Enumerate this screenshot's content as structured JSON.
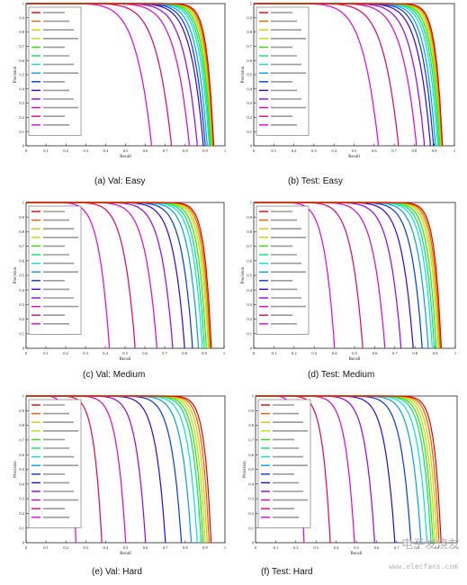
{
  "chart_data": [
    {
      "type": "line",
      "caption": "(a)  Val: Easy",
      "xlabel": "Recall",
      "ylabel": "Precision",
      "xlim": [
        0,
        1
      ],
      "ylim": [
        0,
        1
      ],
      "xticks": [
        "0",
        "0.1",
        "0.2",
        "0.3",
        "0.4",
        "0.5",
        "0.6",
        "0.7",
        "0.8",
        "0.9",
        "1"
      ],
      "yticks": [
        "0",
        "0.1",
        "0.2",
        "0.3",
        "0.4",
        "0.5",
        "0.6",
        "0.7",
        "0.8",
        "0.9",
        "1"
      ],
      "grid": false,
      "legend_position": "top-left",
      "series": [
        {
          "color": "#e60000",
          "end_recall": 0.943
        },
        {
          "color": "#e66000",
          "end_recall": 0.94
        },
        {
          "color": "#e6c000",
          "end_recall": 0.937
        },
        {
          "color": "#b3e600",
          "end_recall": 0.934
        },
        {
          "color": "#30e600",
          "end_recall": 0.93
        },
        {
          "color": "#00e66a",
          "end_recall": 0.925
        },
        {
          "color": "#00e6d6",
          "end_recall": 0.92
        },
        {
          "color": "#00a0e6",
          "end_recall": 0.91
        },
        {
          "color": "#0038e6",
          "end_recall": 0.9
        },
        {
          "color": "#3000e6",
          "end_recall": 0.89
        },
        {
          "color": "#9a00e6",
          "end_recall": 0.86
        },
        {
          "color": "#e600c8",
          "end_recall": 0.82
        },
        {
          "color": "#e60066",
          "end_recall": 0.73
        },
        {
          "color": "#e600e6",
          "end_recall": 0.63
        }
      ]
    },
    {
      "type": "line",
      "caption": "(b) Test: Easy",
      "xlabel": "Recall",
      "ylabel": "Precision",
      "xlim": [
        0,
        1
      ],
      "ylim": [
        0,
        1
      ],
      "xticks": [
        "0",
        "0.1",
        "0.2",
        "0.3",
        "0.4",
        "0.5",
        "0.6",
        "0.7",
        "0.8",
        "0.9",
        "1"
      ],
      "yticks": [
        "0",
        "0.1",
        "0.2",
        "0.3",
        "0.4",
        "0.5",
        "0.6",
        "0.7",
        "0.8",
        "0.9",
        "1"
      ],
      "grid": false,
      "legend_position": "top-left",
      "series": [
        {
          "color": "#e60000",
          "end_recall": 0.94
        },
        {
          "color": "#e66000",
          "end_recall": 0.938
        },
        {
          "color": "#e6c000",
          "end_recall": 0.935
        },
        {
          "color": "#b3e600",
          "end_recall": 0.932
        },
        {
          "color": "#30e600",
          "end_recall": 0.928
        },
        {
          "color": "#00e66a",
          "end_recall": 0.922
        },
        {
          "color": "#00e6d6",
          "end_recall": 0.916
        },
        {
          "color": "#00a0e6",
          "end_recall": 0.905
        },
        {
          "color": "#0038e6",
          "end_recall": 0.895
        },
        {
          "color": "#3000e6",
          "end_recall": 0.88
        },
        {
          "color": "#9a00e6",
          "end_recall": 0.85
        },
        {
          "color": "#e600c8",
          "end_recall": 0.81
        },
        {
          "color": "#e60066",
          "end_recall": 0.72
        },
        {
          "color": "#e600e6",
          "end_recall": 0.62
        }
      ]
    },
    {
      "type": "line",
      "caption": "(c) Val: Medium",
      "xlabel": "Recall",
      "ylabel": "Precision",
      "xlim": [
        0,
        1
      ],
      "ylim": [
        0,
        1
      ],
      "xticks": [
        "0",
        "0.1",
        "0.2",
        "0.3",
        "0.4",
        "0.5",
        "0.6",
        "0.7",
        "0.8",
        "0.9",
        "1"
      ],
      "yticks": [
        "0",
        "0.1",
        "0.2",
        "0.3",
        "0.4",
        "0.5",
        "0.6",
        "0.7",
        "0.8",
        "0.9",
        "1"
      ],
      "grid": false,
      "legend_position": "top-left",
      "series": [
        {
          "color": "#e60000",
          "end_recall": 0.935
        },
        {
          "color": "#e66000",
          "end_recall": 0.93
        },
        {
          "color": "#e6c000",
          "end_recall": 0.925
        },
        {
          "color": "#b3e600",
          "end_recall": 0.92
        },
        {
          "color": "#30e600",
          "end_recall": 0.91
        },
        {
          "color": "#00e66a",
          "end_recall": 0.9
        },
        {
          "color": "#00e6d6",
          "end_recall": 0.89
        },
        {
          "color": "#00a0e6",
          "end_recall": 0.87
        },
        {
          "color": "#0038e6",
          "end_recall": 0.84
        },
        {
          "color": "#3000e6",
          "end_recall": 0.8
        },
        {
          "color": "#9a00e6",
          "end_recall": 0.74
        },
        {
          "color": "#e600c8",
          "end_recall": 0.66
        },
        {
          "color": "#e60066",
          "end_recall": 0.55
        },
        {
          "color": "#e600e6",
          "end_recall": 0.42
        }
      ]
    },
    {
      "type": "line",
      "caption": "(d) Test: Medium",
      "xlabel": "Recall",
      "ylabel": "Precision",
      "xlim": [
        0,
        1
      ],
      "ylim": [
        0,
        1
      ],
      "xticks": [
        "0",
        "0.1",
        "0.2",
        "0.3",
        "0.4",
        "0.5",
        "0.6",
        "0.7",
        "0.8",
        "0.9",
        "1"
      ],
      "yticks": [
        "0",
        "0.1",
        "0.2",
        "0.3",
        "0.4",
        "0.5",
        "0.6",
        "0.7",
        "0.8",
        "0.9",
        "1"
      ],
      "grid": false,
      "legend_position": "top-left",
      "series": [
        {
          "color": "#e60000",
          "end_recall": 0.93
        },
        {
          "color": "#e66000",
          "end_recall": 0.925
        },
        {
          "color": "#e6c000",
          "end_recall": 0.92
        },
        {
          "color": "#b3e600",
          "end_recall": 0.915
        },
        {
          "color": "#30e600",
          "end_recall": 0.905
        },
        {
          "color": "#00e66a",
          "end_recall": 0.895
        },
        {
          "color": "#00e6d6",
          "end_recall": 0.885
        },
        {
          "color": "#00a0e6",
          "end_recall": 0.865
        },
        {
          "color": "#0038e6",
          "end_recall": 0.835
        },
        {
          "color": "#3000e6",
          "end_recall": 0.79
        },
        {
          "color": "#9a00e6",
          "end_recall": 0.73
        },
        {
          "color": "#e600c8",
          "end_recall": 0.65
        },
        {
          "color": "#e60066",
          "end_recall": 0.54
        },
        {
          "color": "#e600e6",
          "end_recall": 0.4
        }
      ]
    },
    {
      "type": "line",
      "caption": "(e) Val: Hard",
      "xlabel": "Recall",
      "ylabel": "Precision",
      "xlim": [
        0,
        1
      ],
      "ylim": [
        0,
        1
      ],
      "xticks": [
        "0",
        "0.1",
        "0.2",
        "0.3",
        "0.4",
        "0.5",
        "0.6",
        "0.7",
        "0.8",
        "0.9",
        "1"
      ],
      "yticks": [
        "0",
        "0.1",
        "0.2",
        "0.3",
        "0.4",
        "0.5",
        "0.6",
        "0.7",
        "0.8",
        "0.9",
        "1"
      ],
      "grid": false,
      "legend_position": "top-left",
      "series": [
        {
          "color": "#e60000",
          "end_recall": 0.93
        },
        {
          "color": "#e66000",
          "end_recall": 0.92
        },
        {
          "color": "#e6c000",
          "end_recall": 0.91
        },
        {
          "color": "#b3e600",
          "end_recall": 0.9
        },
        {
          "color": "#30e600",
          "end_recall": 0.89
        },
        {
          "color": "#00e66a",
          "end_recall": 0.88
        },
        {
          "color": "#00e6d6",
          "end_recall": 0.86
        },
        {
          "color": "#00a0e6",
          "end_recall": 0.83
        },
        {
          "color": "#0038e6",
          "end_recall": 0.78
        },
        {
          "color": "#3000e6",
          "end_recall": 0.7
        },
        {
          "color": "#9a00e6",
          "end_recall": 0.6
        },
        {
          "color": "#e600c8",
          "end_recall": 0.5
        },
        {
          "color": "#e60066",
          "end_recall": 0.38
        },
        {
          "color": "#e600e6",
          "end_recall": 0.25
        }
      ]
    },
    {
      "type": "line",
      "caption": "(f) Test: Hard",
      "xlabel": "Recall",
      "ylabel": "Precision",
      "xlim": [
        0,
        1
      ],
      "ylim": [
        0,
        1
      ],
      "xticks": [
        "0",
        "0.1",
        "0.2",
        "0.3",
        "0.4",
        "0.5",
        "0.6",
        "0.7",
        "0.8",
        "0.9",
        "1"
      ],
      "yticks": [
        "0",
        "0.1",
        "0.2",
        "0.3",
        "0.4",
        "0.5",
        "0.6",
        "0.7",
        "0.8",
        "0.9",
        "1"
      ],
      "grid": false,
      "legend_position": "top-left",
      "series": [
        {
          "color": "#e60000",
          "end_recall": 0.92
        },
        {
          "color": "#e66000",
          "end_recall": 0.91
        },
        {
          "color": "#e6c000",
          "end_recall": 0.9
        },
        {
          "color": "#b3e600",
          "end_recall": 0.89
        },
        {
          "color": "#30e600",
          "end_recall": 0.88
        },
        {
          "color": "#00e66a",
          "end_recall": 0.87
        },
        {
          "color": "#00e6d6",
          "end_recall": 0.85
        },
        {
          "color": "#00a0e6",
          "end_recall": 0.82
        },
        {
          "color": "#0038e6",
          "end_recall": 0.77
        },
        {
          "color": "#3000e6",
          "end_recall": 0.69
        },
        {
          "color": "#9a00e6",
          "end_recall": 0.59
        },
        {
          "color": "#e600c8",
          "end_recall": 0.49
        },
        {
          "color": "#e60066",
          "end_recall": 0.37
        },
        {
          "color": "#e600e6",
          "end_recall": 0.24
        }
      ]
    }
  ],
  "watermark": {
    "text": "电子发烧友",
    "url": "www.elecfans.com"
  }
}
